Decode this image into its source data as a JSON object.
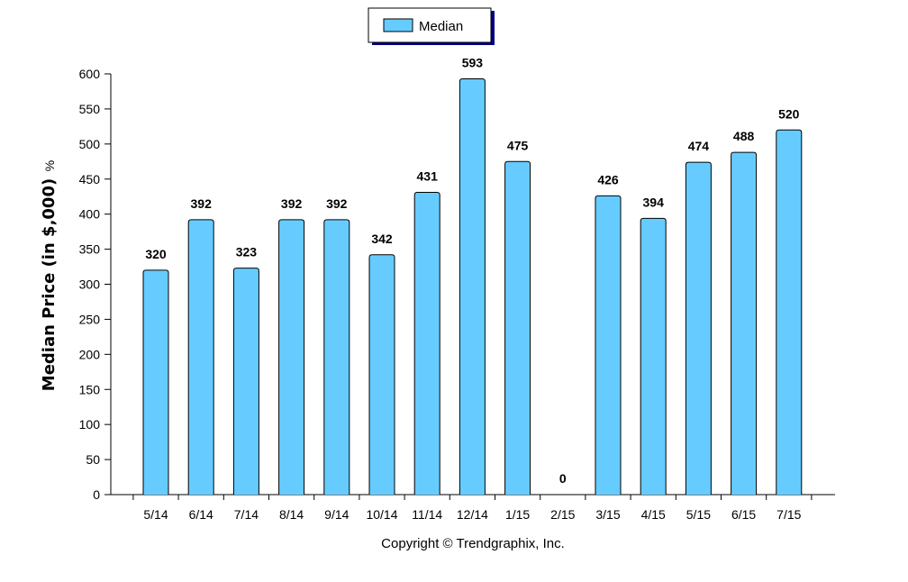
{
  "chart_data": {
    "type": "bar",
    "categories": [
      "5/14",
      "6/14",
      "7/14",
      "8/14",
      "9/14",
      "10/14",
      "11/14",
      "12/14",
      "1/15",
      "2/15",
      "3/15",
      "4/15",
      "5/15",
      "6/15",
      "7/15"
    ],
    "series": [
      {
        "name": "Median",
        "values": [
          320,
          392,
          323,
          392,
          392,
          342,
          431,
          593,
          475,
          0,
          426,
          394,
          474,
          488,
          520
        ]
      }
    ],
    "title": "",
    "xlabel": "",
    "ylabel": "Median Price (in $,000)",
    "ylabel_unit": "%",
    "ylim": [
      0,
      600
    ],
    "yticks": [
      0,
      50,
      100,
      150,
      200,
      250,
      300,
      350,
      400,
      450,
      500,
      550,
      600
    ],
    "grid": false,
    "legend_position": "top-center",
    "footer": "Copyright © Trendgraphix, Inc.",
    "colors": {
      "bar_fill": "#66ccff",
      "bar_stroke": "#000000",
      "legend_shadow": "#000080"
    }
  }
}
